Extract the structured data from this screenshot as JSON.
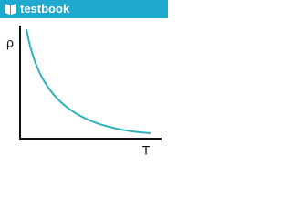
{
  "header": {
    "brand": "testbook"
  },
  "diagram": {
    "y_label": "ρ",
    "x_label": "T"
  }
}
